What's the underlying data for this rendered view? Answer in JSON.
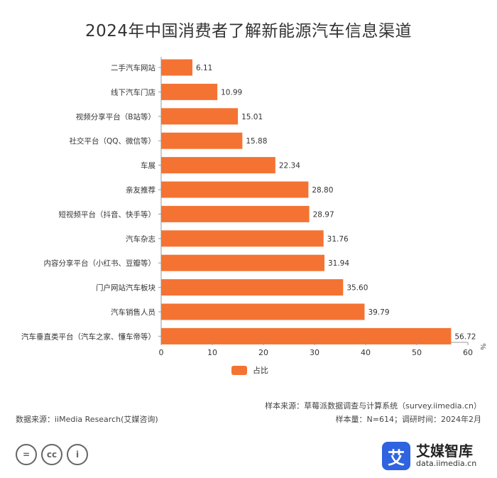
{
  "chart_data": {
    "type": "bar",
    "orientation": "horizontal",
    "title": "2024年中国消费者了解新能源汽车信息渠道",
    "categories": [
      "二手汽车网站",
      "线下汽车门店",
      "视频分享平台（B站等）",
      "社交平台（QQ、微信等）",
      "车展",
      "亲友推荐",
      "短视频平台（抖音、快手等）",
      "汽车杂志",
      "内容分享平台（小红书、豆瓣等）",
      "门户网站汽车板块",
      "汽车销售人员",
      "汽车垂直类平台（汽车之家、懂车帝等）"
    ],
    "series": [
      {
        "name": "占比",
        "values": [
          6.11,
          10.99,
          15.01,
          15.88,
          22.34,
          28.8,
          28.97,
          31.76,
          31.94,
          35.6,
          39.79,
          56.72
        ],
        "labels": [
          "6.11",
          "10.99",
          "15.01",
          "15.88",
          "22.34",
          "28.80",
          "28.97",
          "31.76",
          "31.94",
          "35.60",
          "39.79",
          "56.72"
        ]
      }
    ],
    "xticks": [
      "0",
      "10",
      "20",
      "30",
      "40",
      "50",
      "60"
    ],
    "xlim": [
      0,
      60
    ],
    "unit": "%",
    "legend_position": "bottom",
    "bar_color": "#f47333"
  },
  "footer": {
    "data_source": "数据来源：iiMedia Research(艾媒咨询)",
    "sample_source": "样本来源：草莓派数据调查与计算系统（survey.iimedia.cn）",
    "sample_info": "样本量：N=614；调研时间：2024年2月"
  },
  "license_icons": [
    {
      "icon": "equal-icon",
      "glyph": "="
    },
    {
      "icon": "cc-icon",
      "glyph": "cc"
    },
    {
      "icon": "person-icon",
      "glyph": "i"
    }
  ],
  "brand": {
    "logo_glyph": "艾",
    "name": "艾媒智库",
    "url": "data.iimedia.cn",
    "color": "#2f63e0"
  }
}
